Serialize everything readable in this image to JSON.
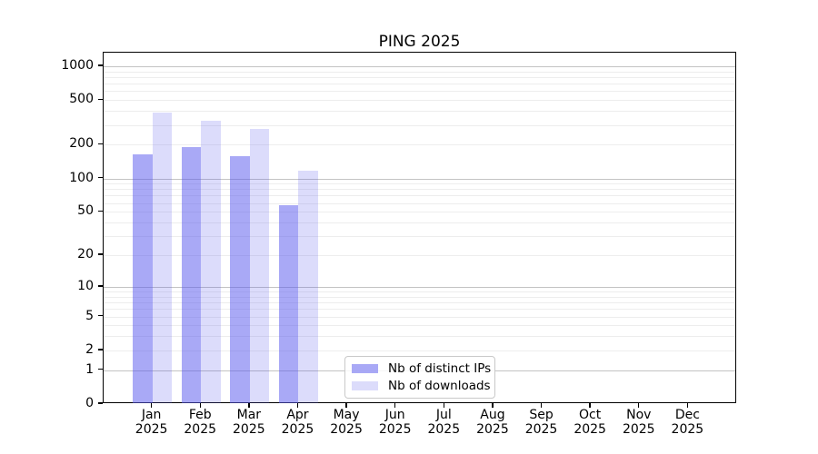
{
  "chart_data": {
    "type": "bar",
    "title": "PING 2025",
    "categories": [
      "Jan",
      "Feb",
      "Mar",
      "Apr",
      "May",
      "Jun",
      "Jul",
      "Aug",
      "Sep",
      "Oct",
      "Nov",
      "Dec"
    ],
    "category_year": "2025",
    "series": [
      {
        "name": "Nb of distinct IPs",
        "color": "rgba(90,90,237,0.52)",
        "values": [
          163,
          191,
          158,
          57,
          null,
          null,
          null,
          null,
          null,
          null,
          null,
          null
        ]
      },
      {
        "name": "Nb of downloads",
        "color": "rgba(90,90,237,0.21)",
        "values": [
          389,
          328,
          277,
          117,
          null,
          null,
          null,
          null,
          null,
          null,
          null,
          null
        ]
      }
    ],
    "y_axis": {
      "scale": "log1p",
      "min": 0,
      "max": 1322,
      "ticks": [
        0,
        1,
        2,
        5,
        10,
        20,
        50,
        100,
        200,
        500,
        1000
      ],
      "major_grid": [
        1,
        10,
        100,
        1000
      ]
    },
    "x_axis": {
      "tick_count": 12
    },
    "grid": "horizontal, major + minor",
    "legend_position": "lower center"
  }
}
